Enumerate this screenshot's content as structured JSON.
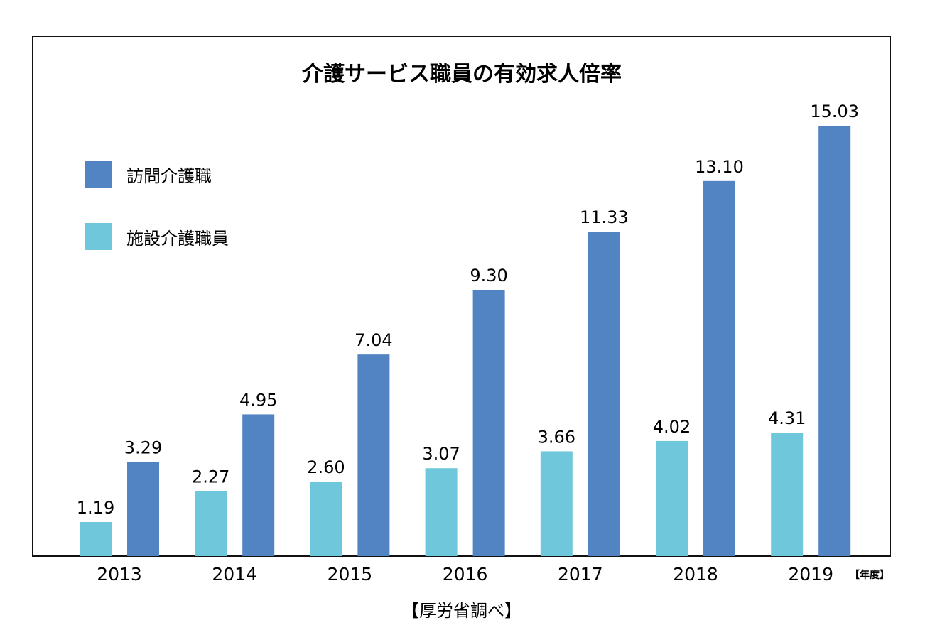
{
  "chart_data": {
    "type": "bar",
    "title": "介護サービス職員の有効求人倍率",
    "categories": [
      "2013",
      "2014",
      "2015",
      "2016",
      "2017",
      "2018",
      "2019"
    ],
    "x_unit_label": "【年度】",
    "source": "【厚労省調べ】",
    "series": [
      {
        "name": "施設介護職員",
        "color": "#6fc7db",
        "values": [
          1.19,
          2.27,
          2.6,
          3.07,
          3.66,
          4.02,
          4.31
        ],
        "labels": [
          "1.19",
          "2.27",
          "2.60",
          "3.07",
          "3.66",
          "4.02",
          "4.31"
        ]
      },
      {
        "name": "訪問介護職",
        "color": "#5284c4",
        "values": [
          3.29,
          4.95,
          7.04,
          9.3,
          11.33,
          13.1,
          15.03
        ],
        "labels": [
          "3.29",
          "4.95",
          "7.04",
          "9.30",
          "11.33",
          "13.10",
          "15.03"
        ]
      }
    ],
    "ylim": [
      0,
      15.03
    ],
    "grid": false,
    "legend": "top-left"
  }
}
